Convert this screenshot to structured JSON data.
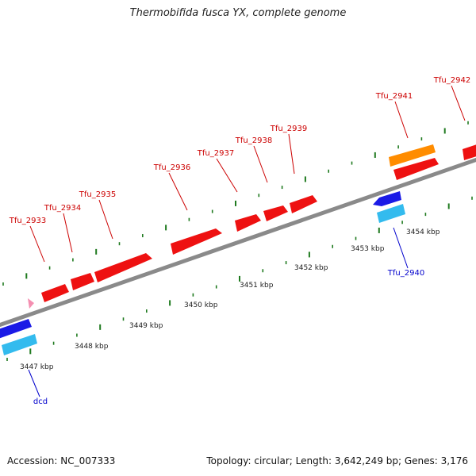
{
  "title": "Thermobifida fusca YX, complete genome",
  "footer": {
    "accession": "Accession: NC_007333",
    "summary": "Topology: circular; Length: 3,642,249 bp; Genes: 3,176"
  },
  "colors": {
    "backbone": "#8a8a8a",
    "tick": "#1f7a1f",
    "forward_gene": "#ee1111",
    "forward_gene_alt": "#ff8c00",
    "reverse_gene": "#1a1ae6",
    "reverse_cds": "#33bbee",
    "forward_label": "#cc0000",
    "reverse_label": "#0000cc",
    "marker": "#f48fb1"
  },
  "scale_labels": [
    "3447 kbp",
    "3448 kbp",
    "3449 kbp",
    "3450 kbp",
    "3451 kbp",
    "3452 kbp",
    "3453 kbp",
    "3454 kbp"
  ],
  "forward_genes": [
    {
      "label": "Tfu_2933",
      "color": "red"
    },
    {
      "label": "Tfu_2934",
      "color": "red"
    },
    {
      "label": "Tfu_2935",
      "color": "red"
    },
    {
      "label": "Tfu_2936",
      "color": "red"
    },
    {
      "label": "Tfu_2937",
      "color": "red"
    },
    {
      "label": "Tfu_2938",
      "color": "red"
    },
    {
      "label": "Tfu_2939",
      "color": "red"
    },
    {
      "label": "Tfu_2941",
      "color": "orange"
    },
    {
      "label": "Tfu_2942",
      "color": "red"
    }
  ],
  "reverse_genes": [
    {
      "label": "dcd"
    },
    {
      "label": "Tfu_2940"
    }
  ]
}
